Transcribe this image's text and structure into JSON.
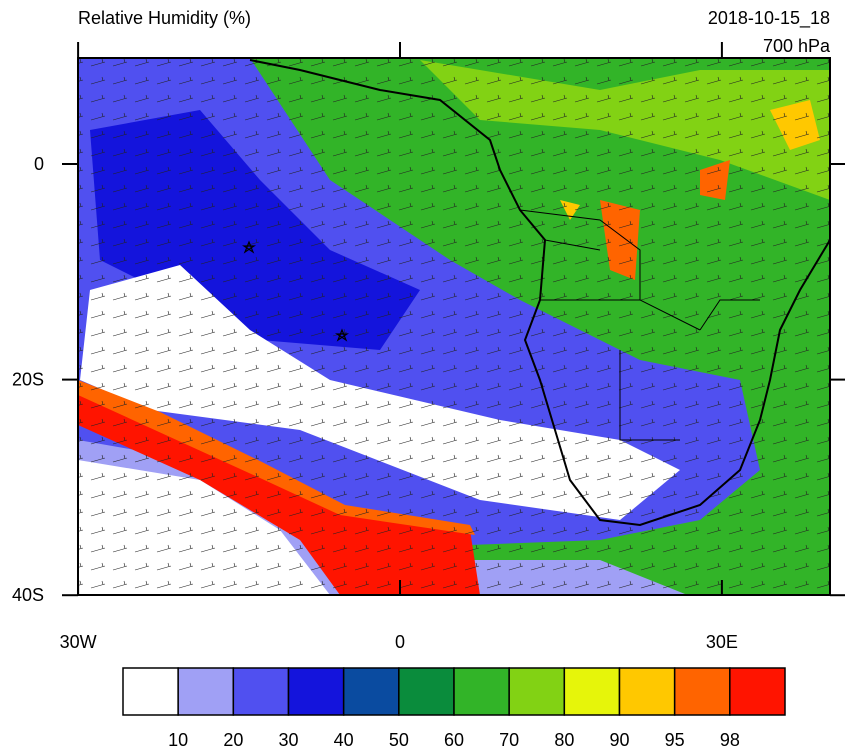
{
  "title": "Relative Humidity (%)",
  "valid_time": "2018-10-15_18",
  "level": "700 hPa",
  "map": {
    "xticks": [
      {
        "value": -30,
        "label": "30W"
      },
      {
        "value": 0,
        "label": "0"
      },
      {
        "value": 30,
        "label": "30E"
      }
    ],
    "yticks": [
      {
        "value": 0,
        "label": "0"
      },
      {
        "value": -20,
        "label": "20S"
      },
      {
        "value": -40,
        "label": "40S"
      }
    ]
  },
  "colorbar": {
    "colors": [
      "#ffffff",
      "#a0a0f5",
      "#5050f0",
      "#1414dc",
      "#0a4ba0",
      "#0a8c3c",
      "#32b428",
      "#82d214",
      "#e6f50a",
      "#ffc800",
      "#ff6400",
      "#ff1400"
    ],
    "labels": [
      10,
      20,
      30,
      40,
      50,
      60,
      70,
      80,
      90,
      95,
      98
    ]
  }
}
